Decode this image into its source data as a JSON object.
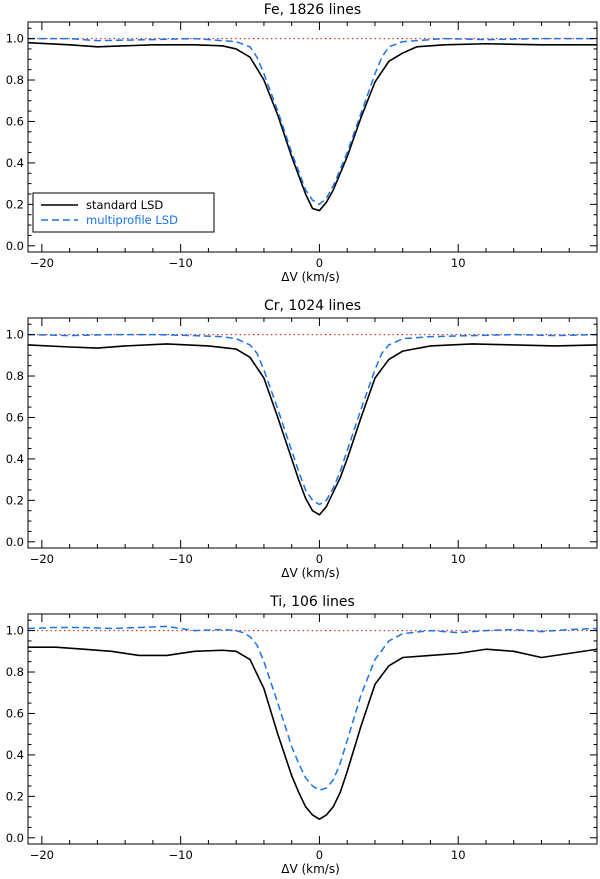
{
  "figure": {
    "xlabel": "ΔV (km/s)",
    "legend": {
      "placement": "bottom-left of first panel",
      "entries": [
        {
          "label": "standard LSD",
          "style": "solid",
          "color": "#000000"
        },
        {
          "label": "multiprofile LSD",
          "style": "dashed",
          "color": "#1a73e8"
        }
      ]
    },
    "colors": {
      "standard": "#000000",
      "multiprofile": "#1a73e8",
      "reference": "#e03020"
    }
  },
  "chart_data": [
    {
      "type": "line",
      "title": "Fe, 1826 lines",
      "xlabel": "ΔV (km/s)",
      "ylabel": "",
      "xlim": [
        -21,
        20
      ],
      "ylim": [
        -0.03,
        1.08
      ],
      "xticks": [
        -20,
        -10,
        0,
        10
      ],
      "yticks": [
        0.0,
        0.2,
        0.4,
        0.6,
        0.8,
        1.0
      ],
      "yticklabels": [
        "0.0",
        "0.2",
        "0.4",
        "0.6",
        "0.8",
        "1.0"
      ],
      "xticklabels": [
        "−20",
        "−10",
        "0",
        "10"
      ],
      "reference_line": 1.0,
      "series": [
        {
          "name": "standard LSD",
          "x": [
            -21,
            -18,
            -16,
            -12,
            -9,
            -7,
            -6,
            -5,
            -4,
            -3,
            -2,
            -1.5,
            -1,
            -0.5,
            0,
            0.5,
            1,
            1.5,
            2,
            3,
            4,
            5,
            6,
            7,
            9,
            12,
            16,
            20
          ],
          "values": [
            0.98,
            0.97,
            0.96,
            0.97,
            0.97,
            0.965,
            0.95,
            0.91,
            0.8,
            0.63,
            0.43,
            0.34,
            0.25,
            0.18,
            0.17,
            0.21,
            0.27,
            0.35,
            0.43,
            0.62,
            0.79,
            0.89,
            0.93,
            0.96,
            0.97,
            0.975,
            0.97,
            0.97
          ]
        },
        {
          "name": "multiprofile LSD",
          "x": [
            -21,
            -18,
            -16,
            -12,
            -9,
            -7,
            -6,
            -5,
            -4.5,
            -4,
            -3,
            -2,
            -1.5,
            -1,
            -0.5,
            0,
            0.5,
            1,
            1.5,
            2,
            3,
            4,
            4.5,
            5,
            6,
            7,
            9,
            12,
            16,
            20
          ],
          "values": [
            1.0,
            1.0,
            0.99,
            0.995,
            1.0,
            0.99,
            0.985,
            0.96,
            0.91,
            0.83,
            0.65,
            0.45,
            0.36,
            0.27,
            0.22,
            0.2,
            0.23,
            0.29,
            0.37,
            0.45,
            0.64,
            0.83,
            0.91,
            0.96,
            0.985,
            0.99,
            1.0,
            0.995,
            1.0,
            1.0
          ]
        }
      ]
    },
    {
      "type": "line",
      "title": "Cr, 1024 lines",
      "xlabel": "ΔV (km/s)",
      "ylabel": "",
      "xlim": [
        -21,
        20
      ],
      "ylim": [
        -0.03,
        1.08
      ],
      "xticks": [
        -20,
        -10,
        0,
        10
      ],
      "yticks": [
        0.0,
        0.2,
        0.4,
        0.6,
        0.8,
        1.0
      ],
      "yticklabels": [
        "0.0",
        "0.2",
        "0.4",
        "0.6",
        "0.8",
        "1.0"
      ],
      "xticklabels": [
        "−20",
        "−10",
        "0",
        "10"
      ],
      "reference_line": 1.0,
      "series": [
        {
          "name": "standard LSD",
          "x": [
            -21,
            -18,
            -16,
            -14,
            -11,
            -8,
            -6,
            -5,
            -4,
            -3,
            -2,
            -1.5,
            -1,
            -0.5,
            0,
            0.5,
            1,
            1.5,
            2,
            3,
            4,
            5,
            6,
            8,
            11,
            14,
            17,
            20
          ],
          "values": [
            0.95,
            0.94,
            0.935,
            0.945,
            0.955,
            0.945,
            0.93,
            0.89,
            0.79,
            0.6,
            0.4,
            0.3,
            0.21,
            0.15,
            0.13,
            0.17,
            0.24,
            0.31,
            0.4,
            0.6,
            0.79,
            0.88,
            0.92,
            0.945,
            0.955,
            0.95,
            0.945,
            0.95
          ]
        },
        {
          "name": "multiprofile LSD",
          "x": [
            -21,
            -18,
            -15,
            -12,
            -9,
            -7,
            -6,
            -5,
            -4.5,
            -4,
            -3,
            -2,
            -1.5,
            -1,
            -0.5,
            0,
            0.5,
            1,
            1.5,
            2,
            3,
            4,
            4.5,
            5,
            6,
            8,
            11,
            14,
            17,
            20
          ],
          "values": [
            1.0,
            0.995,
            1.0,
            1.0,
            0.995,
            0.99,
            0.98,
            0.95,
            0.91,
            0.83,
            0.64,
            0.44,
            0.34,
            0.25,
            0.2,
            0.18,
            0.2,
            0.26,
            0.34,
            0.44,
            0.64,
            0.83,
            0.91,
            0.95,
            0.98,
            0.99,
            0.995,
            1.0,
            0.995,
            1.0
          ]
        }
      ]
    },
    {
      "type": "line",
      "title": "Ti, 106 lines",
      "xlabel": "ΔV (km/s)",
      "ylabel": "",
      "xlim": [
        -21,
        20
      ],
      "ylim": [
        -0.03,
        1.08
      ],
      "xticks": [
        -20,
        -10,
        0,
        10
      ],
      "yticks": [
        0.0,
        0.2,
        0.4,
        0.6,
        0.8,
        1.0
      ],
      "yticklabels": [
        "0.0",
        "0.2",
        "0.4",
        "0.6",
        "0.8",
        "1.0"
      ],
      "xticklabels": [
        "−20",
        "−10",
        "0",
        "10"
      ],
      "reference_line": 1.0,
      "series": [
        {
          "name": "standard LSD",
          "x": [
            -21,
            -19,
            -17,
            -15,
            -13,
            -11,
            -9,
            -7,
            -6,
            -5,
            -4,
            -3,
            -2,
            -1.5,
            -1,
            -0.5,
            0,
            0.5,
            1,
            1.5,
            2,
            3,
            4,
            5,
            6,
            8,
            10,
            12,
            14,
            16,
            18,
            20
          ],
          "values": [
            0.92,
            0.92,
            0.91,
            0.9,
            0.88,
            0.88,
            0.9,
            0.905,
            0.9,
            0.86,
            0.72,
            0.5,
            0.3,
            0.22,
            0.15,
            0.11,
            0.09,
            0.11,
            0.15,
            0.22,
            0.32,
            0.54,
            0.74,
            0.83,
            0.87,
            0.88,
            0.89,
            0.91,
            0.9,
            0.87,
            0.89,
            0.91
          ]
        },
        {
          "name": "multiprofile LSD",
          "x": [
            -21,
            -19,
            -17,
            -15,
            -13,
            -11,
            -9,
            -7,
            -6,
            -5.5,
            -5,
            -4.5,
            -4,
            -3,
            -2,
            -1.5,
            -1,
            -0.5,
            0,
            0.5,
            1,
            1.5,
            2,
            3,
            4,
            5,
            6,
            8,
            10,
            12,
            14,
            16,
            18,
            20
          ],
          "values": [
            1.01,
            1.015,
            1.015,
            1.01,
            1.015,
            1.02,
            1.0,
            1.005,
            1.0,
            0.99,
            0.97,
            0.93,
            0.85,
            0.65,
            0.44,
            0.36,
            0.29,
            0.25,
            0.23,
            0.24,
            0.28,
            0.36,
            0.47,
            0.69,
            0.86,
            0.95,
            0.985,
            1.0,
            0.99,
            1.0,
            1.005,
            0.995,
            1.005,
            1.01
          ]
        }
      ]
    }
  ]
}
